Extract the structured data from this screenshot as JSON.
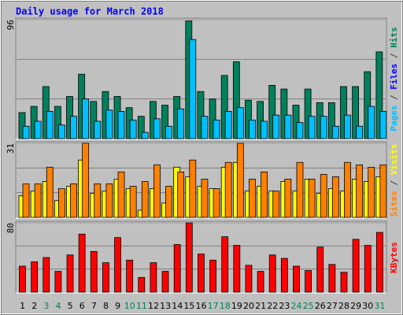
{
  "chart_data": [
    {
      "type": "bar",
      "title": "Daily usage for March 2018",
      "categories": [
        "1",
        "2",
        "3",
        "4",
        "5",
        "6",
        "7",
        "8",
        "9",
        "10",
        "11",
        "12",
        "13",
        "14",
        "15",
        "16",
        "17",
        "18",
        "19",
        "20",
        "21",
        "22",
        "23",
        "24",
        "25",
        "26",
        "27",
        "28",
        "29",
        "30",
        "31"
      ],
      "category_colors": [
        "#000000",
        "#000000",
        "#00805c",
        "#00805c",
        "#000000",
        "#000000",
        "#000000",
        "#000000",
        "#000000",
        "#00805c",
        "#00805c",
        "#000000",
        "#000000",
        "#000000",
        "#000000",
        "#000000",
        "#00805c",
        "#00805c",
        "#000000",
        "#000000",
        "#000000",
        "#000000",
        "#000000",
        "#00805c",
        "#00805c",
        "#000000",
        "#000000",
        "#000000",
        "#000000",
        "#000000",
        "#00805c"
      ],
      "ylim": [
        0,
        96
      ],
      "yticks": [
        96
      ],
      "series": [
        {
          "name": "Hits",
          "color": "#00805c",
          "values": [
            21,
            26,
            42,
            26,
            34,
            52,
            30,
            38,
            34,
            25,
            18,
            30,
            27,
            34,
            95,
            38,
            32,
            51,
            62,
            31,
            30,
            43,
            40,
            27,
            40,
            29,
            29,
            42,
            42,
            54,
            70
          ]
        },
        {
          "name": "Pages",
          "color": "#00c0ff",
          "values": [
            10,
            14,
            22,
            11,
            18,
            32,
            14,
            23,
            22,
            15,
            5,
            16,
            10,
            24,
            80,
            18,
            15,
            22,
            25,
            15,
            14,
            19,
            19,
            13,
            18,
            18,
            10,
            19,
            10,
            26,
            22
          ]
        }
      ],
      "legend_only": {
        "name": "Files",
        "color": "#0000ff"
      },
      "legend_order": [
        "Pages",
        "Files",
        "Hits"
      ],
      "legend_separator": " / "
    },
    {
      "type": "bar",
      "ylim": [
        0,
        31
      ],
      "yticks": [
        31
      ],
      "series": [
        {
          "name": "Visits",
          "color": "#ffff00",
          "values": [
            9,
            11,
            15,
            7,
            13,
            24,
            10,
            11,
            16,
            12,
            3,
            12,
            6,
            21,
            17,
            13,
            12,
            21,
            23,
            11,
            13,
            11,
            15,
            11,
            16,
            10,
            12,
            11,
            16,
            15,
            17
          ]
        },
        {
          "name": "Sites",
          "color": "#ff8000",
          "values": [
            14,
            14,
            21,
            12,
            14,
            31,
            14,
            14,
            19,
            13,
            15,
            22,
            13,
            19,
            24,
            16,
            12,
            23,
            31,
            16,
            19,
            11,
            16,
            23,
            16,
            18,
            17,
            23,
            22,
            21,
            22
          ]
        }
      ],
      "legend_order": [
        "Sites",
        "Visits"
      ],
      "legend_separator": " / "
    },
    {
      "type": "bar",
      "ylim": [
        0,
        80
      ],
      "yticks": [
        80
      ],
      "series": [
        {
          "name": "KBytes",
          "color": "#ff0000",
          "values": [
            30,
            35,
            40,
            24,
            43,
            67,
            47,
            34,
            63,
            37,
            17,
            34,
            24,
            55,
            80,
            44,
            37,
            64,
            54,
            31,
            24,
            43,
            39,
            30,
            25,
            52,
            32,
            23,
            61,
            54,
            69
          ]
        }
      ],
      "legend_order": [
        "KBytes"
      ]
    }
  ]
}
